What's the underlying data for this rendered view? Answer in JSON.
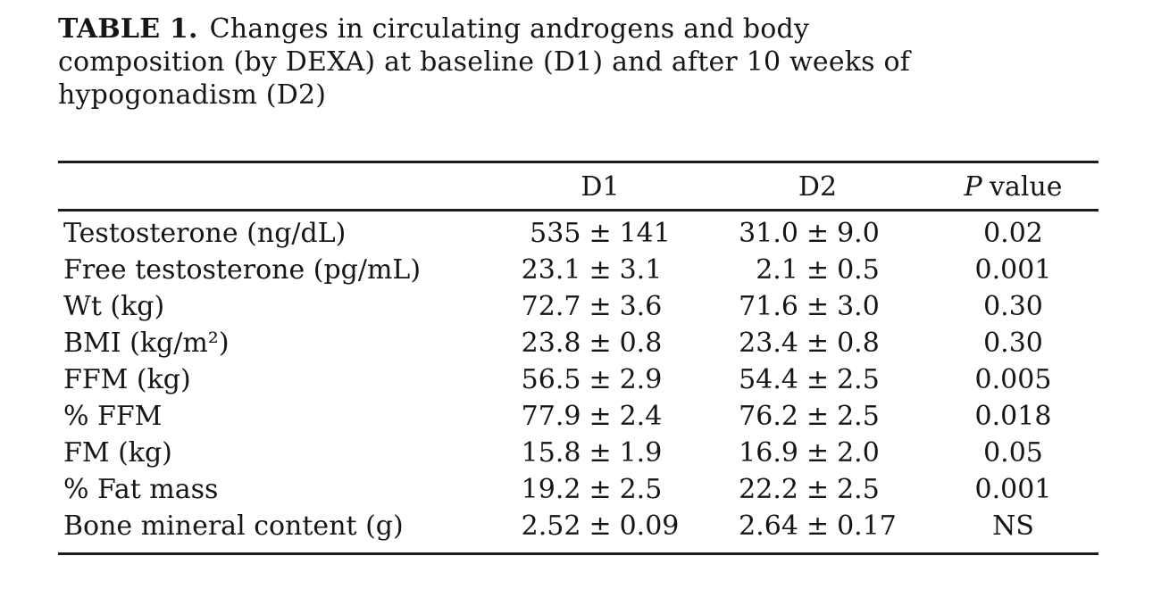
{
  "caption": {
    "lines": [
      {
        "bold": "TABLE 1.",
        "text": "Changes in circulating androgens and body"
      },
      {
        "text": "composition (by DEXA) at baseline (D1) and after 10 weeks of"
      },
      {
        "text": "hypogonadism (D2)"
      }
    ]
  },
  "table": {
    "headers": {
      "label": "",
      "d1": "D1",
      "d2": "D2",
      "p_symbol": "P",
      "p_rest": "value"
    },
    "symbols": {
      "pm": "±"
    },
    "rows": [
      {
        "label": "Testosterone (ng/dL)",
        "d1_mean": "535",
        "d1_err": "141",
        "d2_mean": "31.0",
        "d2_err": "9.0",
        "p": "0.02"
      },
      {
        "label": "Free testosterone (pg/mL)",
        "d1_mean": "23.1",
        "d1_err": "3.1",
        "d2_mean": "2.1",
        "d2_err": "0.5",
        "p": "0.001"
      },
      {
        "label": "Wt (kg)",
        "d1_mean": "72.7",
        "d1_err": "3.6",
        "d2_mean": "71.6",
        "d2_err": "3.0",
        "p": "0.30"
      },
      {
        "label": "BMI (kg/m²)",
        "d1_mean": "23.8",
        "d1_err": "0.8",
        "d2_mean": "23.4",
        "d2_err": "0.8",
        "p": "0.30"
      },
      {
        "label": "FFM (kg)",
        "d1_mean": "56.5",
        "d1_err": "2.9",
        "d2_mean": "54.4",
        "d2_err": "2.5",
        "p": "0.005"
      },
      {
        "label": "% FFM",
        "d1_mean": "77.9",
        "d1_err": "2.4",
        "d2_mean": "76.2",
        "d2_err": "2.5",
        "p": "0.018"
      },
      {
        "label": "FM (kg)",
        "d1_mean": "15.8",
        "d1_err": "1.9",
        "d2_mean": "16.9",
        "d2_err": "2.0",
        "p": "0.05"
      },
      {
        "label": "% Fat mass",
        "d1_mean": "19.2",
        "d1_err": "2.5",
        "d2_mean": "22.2",
        "d2_err": "2.5",
        "p": "0.001"
      },
      {
        "label": "Bone mineral content (g)",
        "d1_mean": "2.52",
        "d1_err": "0.09",
        "d2_mean": "2.64",
        "d2_err": "0.17",
        "p": "NS"
      }
    ]
  }
}
